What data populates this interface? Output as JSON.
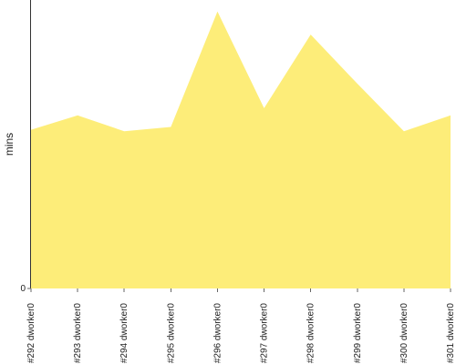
{
  "chart_data": {
    "type": "area",
    "title": "",
    "xlabel": "",
    "ylabel": "mins",
    "categories": [
      "#292 dworker0",
      "#293 dworker0",
      "#294 dworker0",
      "#295 dworker0",
      "#296 dworker0",
      "#297 dworker0",
      "#298 dworker0",
      "#299 dworker0",
      "#300 dworker0",
      "#301 dworker0"
    ],
    "series": [
      {
        "values": [
          5.5,
          6.0,
          5.45,
          5.6,
          9.6,
          6.25,
          8.8,
          7.1,
          5.45,
          6.0
        ],
        "color": "#fded79"
      }
    ],
    "ylim": [
      0,
      10
    ],
    "y_ticks": [
      0
    ],
    "y_tick_labels": [
      "0"
    ],
    "grid": false,
    "legend": "none"
  }
}
